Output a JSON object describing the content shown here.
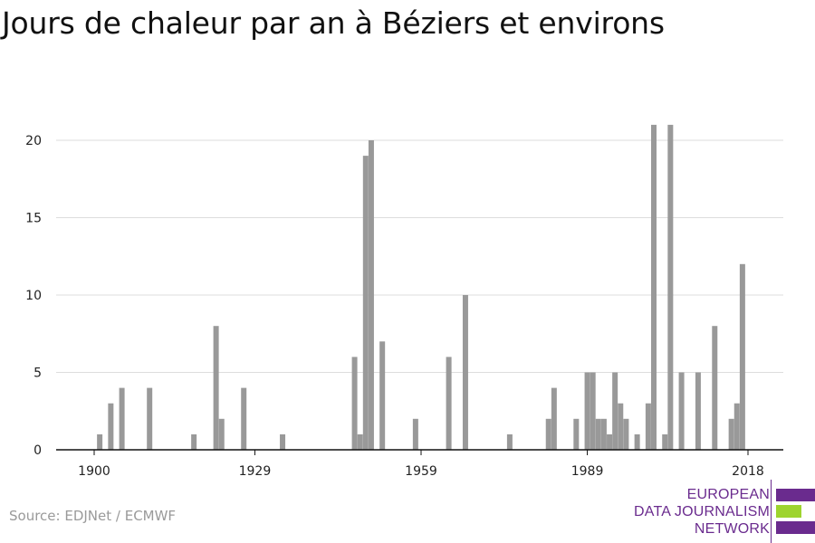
{
  "title": "Jours de chaleur par an à Béziers et environs",
  "source": "Source: EDJNet / ECMWF",
  "logo": {
    "line1": "EUROPEAN",
    "line2": "DATA JOURNALISM",
    "line3": "NETWORK",
    "colors": {
      "purple": "#6a2b8e",
      "green": "#9ed42f"
    }
  },
  "chart_data": {
    "type": "bar",
    "title": "Jours de chaleur par an à Béziers et environs",
    "xlabel": "",
    "ylabel": "",
    "xlim": [
      1894,
      2023
    ],
    "ylim": [
      0,
      22
    ],
    "x_ticks": [
      1900,
      1929,
      1959,
      1989,
      2018
    ],
    "y_ticks": [
      0,
      5,
      10,
      15,
      20
    ],
    "grid": true,
    "bar_color": "#999999",
    "x": [
      1901,
      1903,
      1905,
      1910,
      1918,
      1922,
      1923,
      1927,
      1934,
      1947,
      1948,
      1949,
      1950,
      1952,
      1958,
      1964,
      1967,
      1975,
      1982,
      1983,
      1987,
      1989,
      1990,
      1991,
      1992,
      1993,
      1994,
      1995,
      1996,
      1998,
      2000,
      2001,
      2003,
      2004,
      2006,
      2009,
      2012,
      2015,
      2016,
      2017,
      2018
    ],
    "values": [
      1,
      3,
      4,
      4,
      1,
      8,
      2,
      4,
      1,
      6,
      1,
      19,
      20,
      7,
      2,
      6,
      10,
      1,
      2,
      4,
      2,
      5,
      5,
      2,
      2,
      1,
      5,
      3,
      2,
      1,
      3,
      21,
      1,
      21,
      5,
      5,
      8,
      2,
      3,
      12,
      0
    ]
  }
}
